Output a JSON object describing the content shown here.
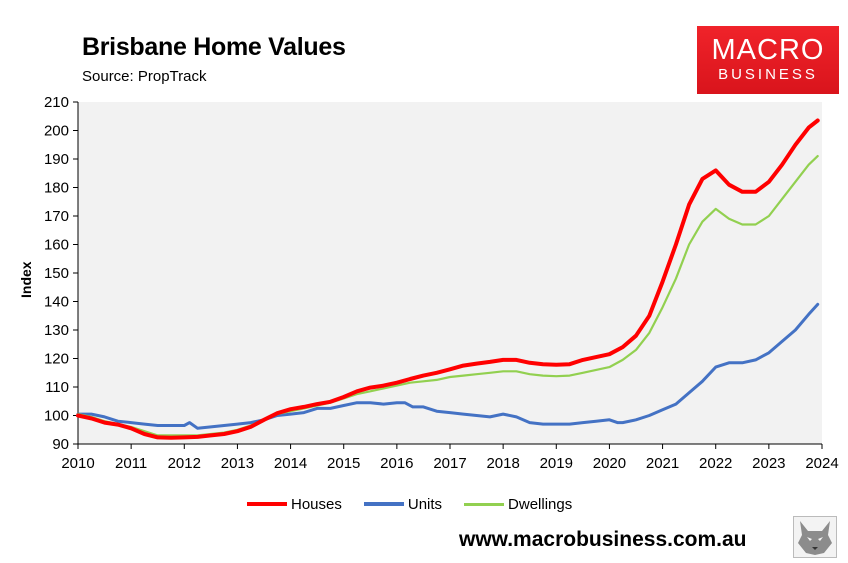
{
  "title": "Brisbane Home Values",
  "subtitle": "Source: PropTrack",
  "logo": {
    "line1": "MACRO",
    "line2": "BUSINESS",
    "color": "#e41e26"
  },
  "website": "www.macrobusiness.com.au",
  "wolf_icon": "wolf-head-icon",
  "chart_data": {
    "type": "line",
    "xlabel": "",
    "ylabel": "Index",
    "xlim": [
      2010,
      2024
    ],
    "ylim": [
      90,
      210
    ],
    "x_ticks": [
      "2010",
      "2011",
      "2012",
      "2013",
      "2014",
      "2015",
      "2016",
      "2017",
      "2018",
      "2019",
      "2020",
      "2021",
      "2022",
      "2023",
      "2024"
    ],
    "y_ticks": [
      "90",
      "100",
      "110",
      "120",
      "130",
      "140",
      "150",
      "160",
      "170",
      "180",
      "190",
      "200",
      "210"
    ],
    "grid": false,
    "plot_background": "#f2f2f2",
    "legend_position": "bottom",
    "series": [
      {
        "name": "Houses",
        "color": "#ff0000",
        "points": [
          [
            2010,
            100
          ],
          [
            2010.25,
            99
          ],
          [
            2010.5,
            97.5
          ],
          [
            2010.75,
            96.8
          ],
          [
            2011,
            95.5
          ],
          [
            2011.25,
            93.5
          ],
          [
            2011.5,
            92.3
          ],
          [
            2011.75,
            92.2
          ],
          [
            2012,
            92.3
          ],
          [
            2012.25,
            92.5
          ],
          [
            2012.5,
            93
          ],
          [
            2012.75,
            93.5
          ],
          [
            2013,
            94.5
          ],
          [
            2013.25,
            96
          ],
          [
            2013.5,
            98.5
          ],
          [
            2013.75,
            100.8
          ],
          [
            2014,
            102.2
          ],
          [
            2014.25,
            103
          ],
          [
            2014.5,
            104
          ],
          [
            2014.75,
            104.8
          ],
          [
            2015,
            106.5
          ],
          [
            2015.25,
            108.5
          ],
          [
            2015.5,
            109.8
          ],
          [
            2015.75,
            110.5
          ],
          [
            2016,
            111.5
          ],
          [
            2016.25,
            112.8
          ],
          [
            2016.5,
            114
          ],
          [
            2016.75,
            115
          ],
          [
            2017,
            116.2
          ],
          [
            2017.25,
            117.5
          ],
          [
            2017.5,
            118.2
          ],
          [
            2017.75,
            118.8
          ],
          [
            2018,
            119.5
          ],
          [
            2018.25,
            119.5
          ],
          [
            2018.5,
            118.5
          ],
          [
            2018.75,
            118
          ],
          [
            2019,
            117.8
          ],
          [
            2019.25,
            118
          ],
          [
            2019.5,
            119.5
          ],
          [
            2019.75,
            120.5
          ],
          [
            2020,
            121.5
          ],
          [
            2020.25,
            124
          ],
          [
            2020.5,
            128
          ],
          [
            2020.75,
            135
          ],
          [
            2021,
            147
          ],
          [
            2021.25,
            160
          ],
          [
            2021.5,
            174
          ],
          [
            2021.75,
            183
          ],
          [
            2022,
            186
          ],
          [
            2022.25,
            181
          ],
          [
            2022.5,
            178.5
          ],
          [
            2022.75,
            178.5
          ],
          [
            2023,
            182
          ],
          [
            2023.25,
            188
          ],
          [
            2023.5,
            195
          ],
          [
            2023.75,
            201
          ],
          [
            2023.92,
            203.5
          ]
        ]
      },
      {
        "name": "Units",
        "color": "#4472c4",
        "points": [
          [
            2010,
            100.5
          ],
          [
            2010.25,
            100.5
          ],
          [
            2010.5,
            99.5
          ],
          [
            2010.75,
            98
          ],
          [
            2011,
            97.5
          ],
          [
            2011.25,
            97
          ],
          [
            2011.5,
            96.5
          ],
          [
            2011.75,
            96.5
          ],
          [
            2012,
            96.5
          ],
          [
            2012.1,
            97.5
          ],
          [
            2012.25,
            95.5
          ],
          [
            2012.5,
            96
          ],
          [
            2012.75,
            96.5
          ],
          [
            2013,
            97
          ],
          [
            2013.25,
            97.5
          ],
          [
            2013.5,
            98.5
          ],
          [
            2013.75,
            100
          ],
          [
            2014,
            100.5
          ],
          [
            2014.25,
            101
          ],
          [
            2014.5,
            102.5
          ],
          [
            2014.75,
            102.5
          ],
          [
            2015,
            103.5
          ],
          [
            2015.25,
            104.5
          ],
          [
            2015.5,
            104.5
          ],
          [
            2015.75,
            104
          ],
          [
            2016,
            104.5
          ],
          [
            2016.15,
            104.5
          ],
          [
            2016.3,
            103
          ],
          [
            2016.5,
            103
          ],
          [
            2016.75,
            101.5
          ],
          [
            2017,
            101
          ],
          [
            2017.25,
            100.5
          ],
          [
            2017.5,
            100
          ],
          [
            2017.75,
            99.5
          ],
          [
            2018,
            100.5
          ],
          [
            2018.25,
            99.5
          ],
          [
            2018.5,
            97.5
          ],
          [
            2018.75,
            97
          ],
          [
            2019,
            97
          ],
          [
            2019.25,
            97
          ],
          [
            2019.5,
            97.5
          ],
          [
            2019.75,
            98
          ],
          [
            2020,
            98.5
          ],
          [
            2020.15,
            97.5
          ],
          [
            2020.25,
            97.5
          ],
          [
            2020.5,
            98.5
          ],
          [
            2020.75,
            100
          ],
          [
            2021,
            102
          ],
          [
            2021.25,
            104
          ],
          [
            2021.5,
            108
          ],
          [
            2021.75,
            112
          ],
          [
            2022,
            117
          ],
          [
            2022.25,
            118.5
          ],
          [
            2022.5,
            118.5
          ],
          [
            2022.75,
            119.5
          ],
          [
            2023,
            122
          ],
          [
            2023.25,
            126
          ],
          [
            2023.5,
            130
          ],
          [
            2023.75,
            135.5
          ],
          [
            2023.92,
            139
          ]
        ]
      },
      {
        "name": "Dwellings",
        "color": "#92d050",
        "points": [
          [
            2010,
            100.5
          ],
          [
            2010.25,
            99.5
          ],
          [
            2010.5,
            98
          ],
          [
            2010.75,
            97
          ],
          [
            2011,
            96
          ],
          [
            2011.25,
            94.5
          ],
          [
            2011.5,
            93
          ],
          [
            2011.75,
            93
          ],
          [
            2012,
            93
          ],
          [
            2012.25,
            93
          ],
          [
            2012.5,
            93.5
          ],
          [
            2012.75,
            94
          ],
          [
            2013,
            95
          ],
          [
            2013.25,
            96.5
          ],
          [
            2013.5,
            98.5
          ],
          [
            2013.75,
            100.5
          ],
          [
            2014,
            101.5
          ],
          [
            2014.25,
            102.5
          ],
          [
            2014.5,
            103.5
          ],
          [
            2014.75,
            104.5
          ],
          [
            2015,
            106
          ],
          [
            2015.25,
            107.5
          ],
          [
            2015.5,
            108.5
          ],
          [
            2015.75,
            109.5
          ],
          [
            2016,
            110.5
          ],
          [
            2016.25,
            111.5
          ],
          [
            2016.5,
            112
          ],
          [
            2016.75,
            112.5
          ],
          [
            2017,
            113.5
          ],
          [
            2017.25,
            114
          ],
          [
            2017.5,
            114.5
          ],
          [
            2017.75,
            115
          ],
          [
            2018,
            115.5
          ],
          [
            2018.25,
            115.5
          ],
          [
            2018.5,
            114.5
          ],
          [
            2018.75,
            114
          ],
          [
            2019,
            113.8
          ],
          [
            2019.25,
            114
          ],
          [
            2019.5,
            115
          ],
          [
            2019.75,
            116
          ],
          [
            2020,
            117
          ],
          [
            2020.25,
            119.5
          ],
          [
            2020.5,
            123
          ],
          [
            2020.75,
            129
          ],
          [
            2021,
            138
          ],
          [
            2021.25,
            148
          ],
          [
            2021.5,
            160
          ],
          [
            2021.75,
            168
          ],
          [
            2022,
            172.5
          ],
          [
            2022.25,
            169
          ],
          [
            2022.5,
            167
          ],
          [
            2022.75,
            167
          ],
          [
            2023,
            170
          ],
          [
            2023.25,
            176
          ],
          [
            2023.5,
            182
          ],
          [
            2023.75,
            188
          ],
          [
            2023.92,
            191
          ]
        ]
      }
    ]
  }
}
